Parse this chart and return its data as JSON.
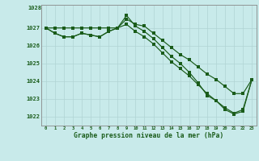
{
  "xlabel": "Graphe pression niveau de la mer (hPa)",
  "bg_color": "#c8eaea",
  "grid_color": "#b0d4d4",
  "line_color": "#1a5c1a",
  "x_ticks": [
    0,
    1,
    2,
    3,
    4,
    5,
    6,
    7,
    8,
    9,
    10,
    11,
    12,
    13,
    14,
    15,
    16,
    17,
    18,
    19,
    20,
    21,
    22,
    23
  ],
  "ylim": [
    1021.5,
    1028.3
  ],
  "yticks": [
    1022,
    1023,
    1024,
    1025,
    1026,
    1027
  ],
  "ytop_label": "1028",
  "series1": [
    1027.0,
    1027.0,
    1027.0,
    1027.0,
    1027.0,
    1027.0,
    1027.0,
    1027.0,
    1027.0,
    1027.5,
    1027.2,
    1027.1,
    1026.7,
    1026.3,
    1025.9,
    1025.5,
    1025.2,
    1024.8,
    1024.4,
    1024.1,
    1023.7,
    1023.3,
    1023.3,
    1024.1
  ],
  "series2": [
    1027.0,
    1026.7,
    1026.5,
    1026.5,
    1026.7,
    1026.6,
    1026.5,
    1026.8,
    1027.0,
    1027.2,
    1026.8,
    1026.5,
    1026.1,
    1025.6,
    1025.1,
    1024.7,
    1024.3,
    1023.8,
    1023.3,
    1022.9,
    1022.5,
    1022.2,
    1022.4,
    1024.1
  ],
  "series3": [
    1027.0,
    1026.7,
    1026.5,
    1026.5,
    1026.7,
    1026.6,
    1026.5,
    1026.8,
    1027.0,
    1027.7,
    1027.1,
    1026.8,
    1026.4,
    1025.9,
    1025.4,
    1025.0,
    1024.5,
    1023.9,
    1023.2,
    1022.9,
    1022.4,
    1022.15,
    1022.3,
    1024.1
  ]
}
